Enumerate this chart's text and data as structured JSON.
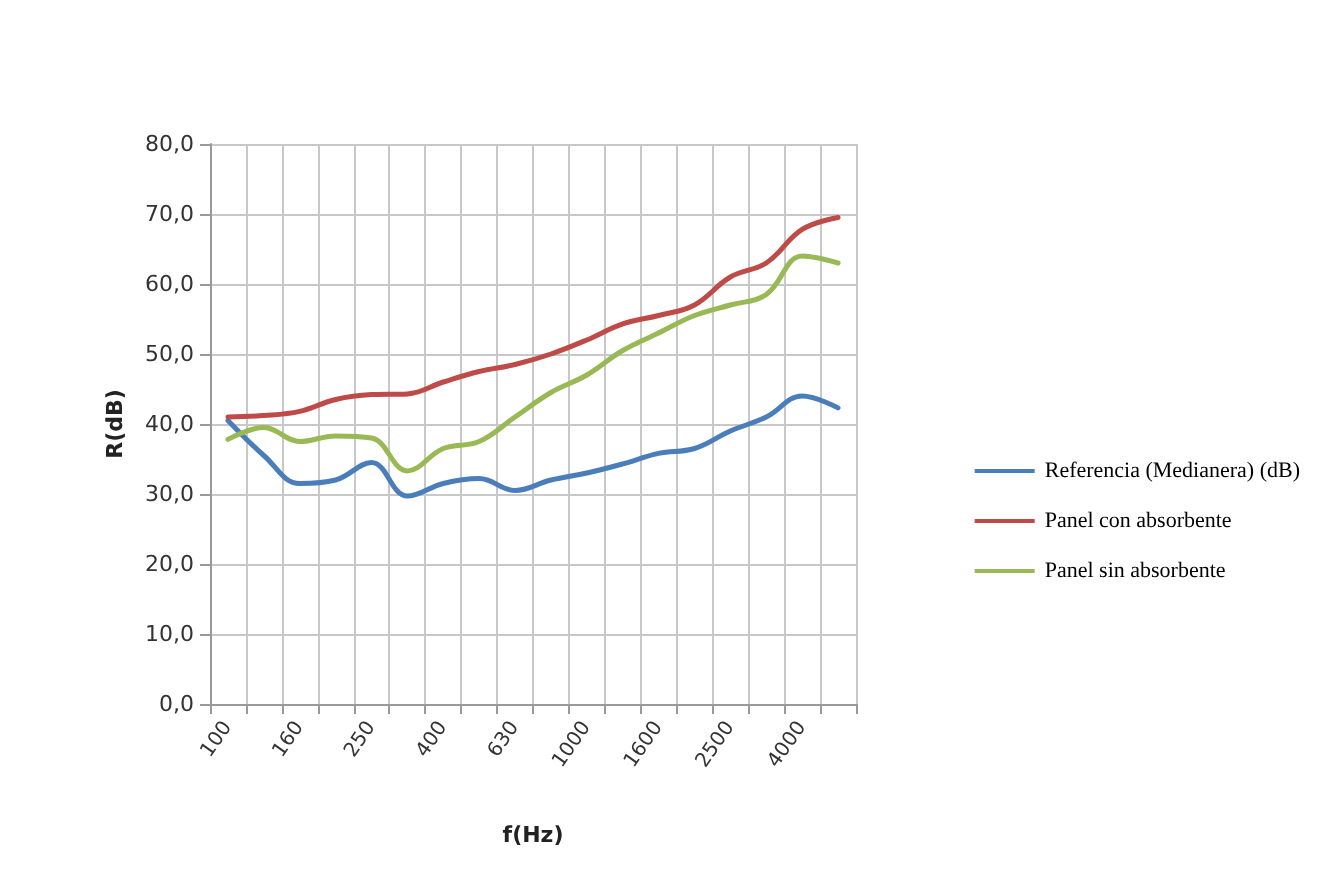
{
  "chart_data": {
    "type": "line",
    "xlabel": "f(Hz)",
    "ylabel": "R(dB)",
    "categories": [
      "100",
      null,
      "160",
      null,
      "250",
      null,
      "400",
      null,
      "630",
      null,
      "1000",
      null,
      "1600",
      null,
      "2500",
      null,
      "4000",
      null
    ],
    "series": [
      {
        "name": "Referencia (Medianera) (dB)",
        "color": "#4a7ebb",
        "values": [
          40.5,
          35.5,
          31.5,
          32,
          34.5,
          29.7,
          31.5,
          32.2,
          30.5,
          32,
          33,
          34.3,
          35.8,
          36.5,
          39,
          41,
          44,
          42.3
        ]
      },
      {
        "name": "Panel con absorbente",
        "color": "#be4b48",
        "values": [
          41,
          41.2,
          41.8,
          43.5,
          44.2,
          44.3,
          46,
          47.5,
          48.5,
          50,
          52,
          54.3,
          55.5,
          57,
          61,
          63,
          67.8,
          69.5
        ]
      },
      {
        "name": "Panel sin absorbente",
        "color": "#98b954",
        "values": [
          37.8,
          39.5,
          37.5,
          38.3,
          38,
          33.3,
          36.5,
          37.5,
          41,
          44.5,
          47,
          50.5,
          53,
          55.5,
          57,
          58.5,
          64,
          63
        ]
      }
    ],
    "ylim": [
      0,
      80
    ],
    "yticks": [
      {
        "value": 0,
        "label": "0,0"
      },
      {
        "value": 10,
        "label": "10,0"
      },
      {
        "value": 20,
        "label": "20,0"
      },
      {
        "value": 30,
        "label": "30,0"
      },
      {
        "value": 40,
        "label": "40,0"
      },
      {
        "value": 50,
        "label": "50,0"
      },
      {
        "value": 60,
        "label": "60,0"
      },
      {
        "value": 70,
        "label": "70,0"
      },
      {
        "value": 80,
        "label": "80,0"
      }
    ],
    "grid": true,
    "legend": "right",
    "marker": "none",
    "line_style": "solid"
  }
}
